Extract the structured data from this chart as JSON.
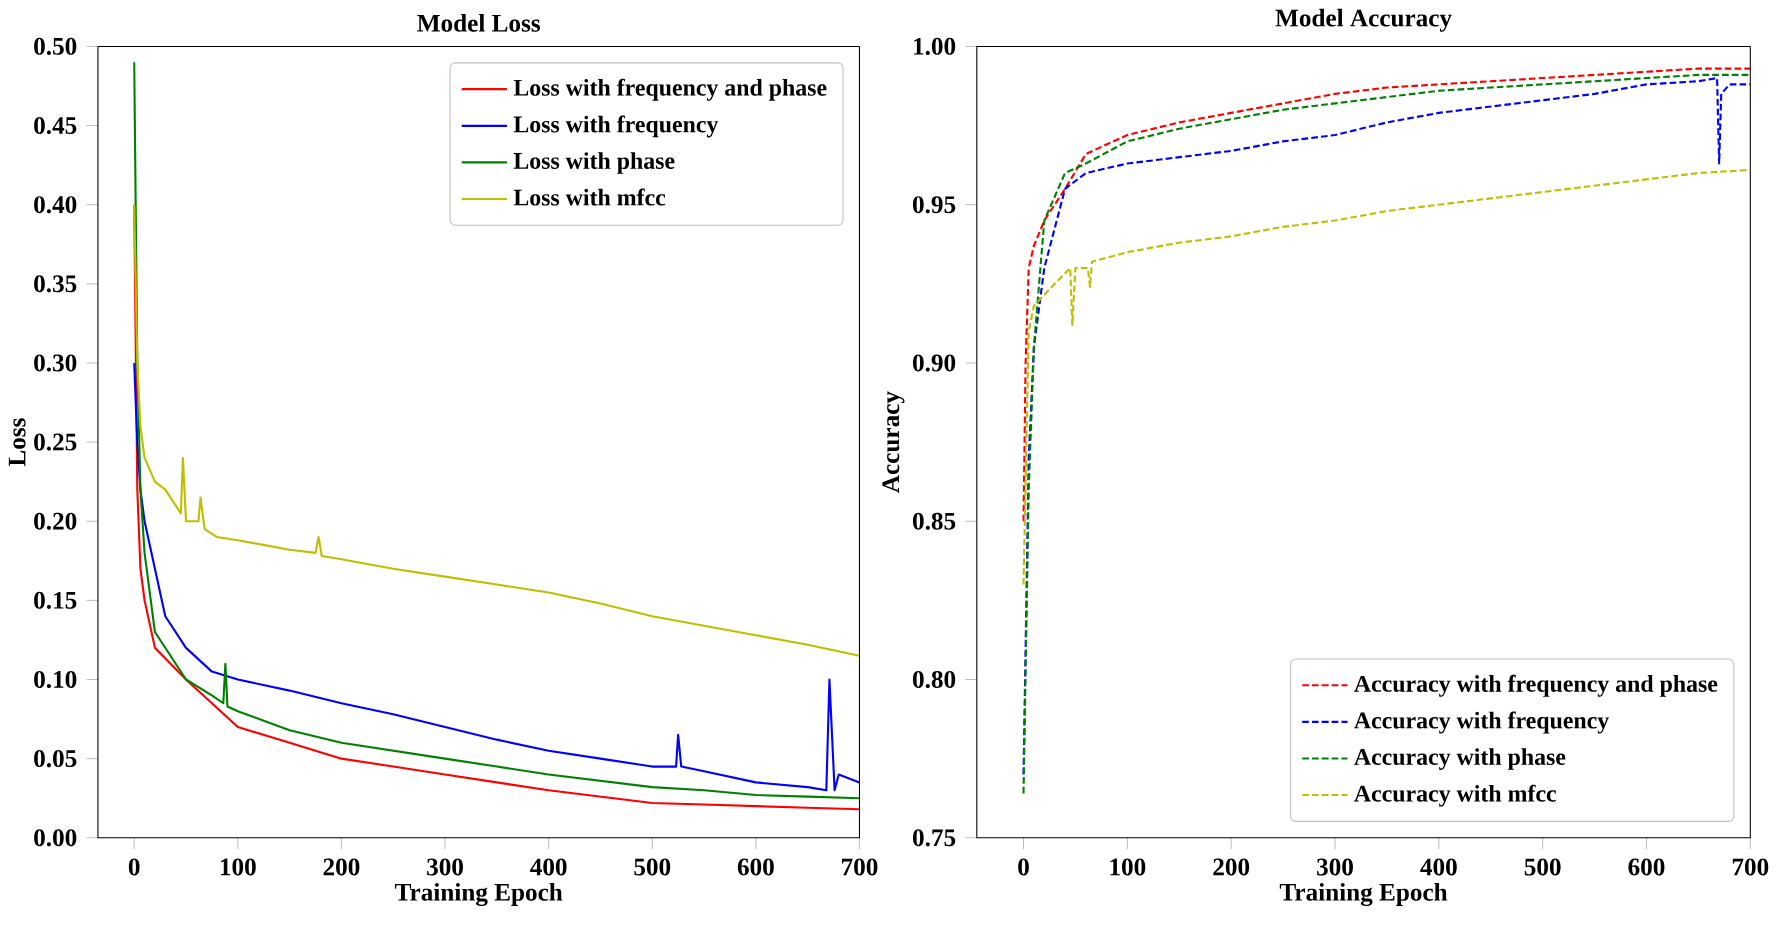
{
  "chart_data": [
    {
      "type": "line",
      "title": "Model Loss",
      "xlabel": "Training Epoch",
      "ylabel": "Loss",
      "legend": "top right",
      "line_style": "solid",
      "marker": "none",
      "grid": false,
      "xlim": [
        -35,
        700
      ],
      "ylim": [
        0,
        0.5
      ],
      "xticks": [
        0,
        100,
        200,
        300,
        400,
        500,
        600,
        700
      ],
      "yticks": [
        {
          "value": 0,
          "label": "0.00"
        },
        {
          "value": 0.05,
          "label": "0.05"
        },
        {
          "value": 0.1,
          "label": "0.10"
        },
        {
          "value": 0.15,
          "label": "0.15"
        },
        {
          "value": 0.2,
          "label": "0.20"
        },
        {
          "value": 0.25,
          "label": "0.25"
        },
        {
          "value": 0.3,
          "label": "0.30"
        },
        {
          "value": 0.35,
          "label": "0.35"
        },
        {
          "value": 0.4,
          "label": "0.40"
        },
        {
          "value": 0.45,
          "label": "0.45"
        },
        {
          "value": 0.5,
          "label": "0.50"
        }
      ],
      "series": [
        {
          "name": "Loss with frequency and phase",
          "color": "#ff0000",
          "x": [
            0,
            3,
            6,
            10,
            20,
            35,
            50,
            75,
            100,
            150,
            200,
            250,
            300,
            350,
            400,
            450,
            500,
            550,
            600,
            650,
            700
          ],
          "values": [
            0.4,
            0.22,
            0.17,
            0.15,
            0.12,
            0.11,
            0.1,
            0.085,
            0.07,
            0.06,
            0.05,
            0.045,
            0.04,
            0.035,
            0.03,
            0.026,
            0.022,
            0.021,
            0.02,
            0.019,
            0.018
          ]
        },
        {
          "name": "Loss with frequency",
          "color": "#0000ff",
          "x": [
            0,
            3,
            6,
            10,
            20,
            30,
            50,
            75,
            100,
            150,
            200,
            250,
            300,
            350,
            400,
            450,
            500,
            523,
            525,
            528,
            550,
            600,
            650,
            668,
            671,
            676,
            680,
            700
          ],
          "values": [
            0.3,
            0.25,
            0.22,
            0.2,
            0.17,
            0.14,
            0.12,
            0.105,
            0.1,
            0.093,
            0.085,
            0.078,
            0.07,
            0.062,
            0.055,
            0.05,
            0.045,
            0.045,
            0.065,
            0.045,
            0.042,
            0.035,
            0.032,
            0.03,
            0.1,
            0.03,
            0.04,
            0.035
          ]
        },
        {
          "name": "Loss with phase",
          "color": "#008000",
          "x": [
            0,
            3,
            6,
            10,
            20,
            35,
            50,
            75,
            86,
            88,
            90,
            100,
            150,
            200,
            250,
            300,
            350,
            400,
            450,
            500,
            550,
            600,
            650,
            700
          ],
          "values": [
            0.49,
            0.3,
            0.22,
            0.18,
            0.13,
            0.115,
            0.1,
            0.09,
            0.085,
            0.11,
            0.083,
            0.08,
            0.068,
            0.06,
            0.055,
            0.05,
            0.045,
            0.04,
            0.036,
            0.032,
            0.03,
            0.027,
            0.026,
            0.025
          ]
        },
        {
          "name": "Loss with mfcc",
          "color": "#bfbf00",
          "x": [
            0,
            3,
            6,
            10,
            20,
            30,
            45,
            47,
            50,
            62,
            64,
            68,
            80,
            100,
            150,
            175,
            178,
            181,
            200,
            250,
            300,
            350,
            400,
            450,
            500,
            550,
            600,
            650,
            700
          ],
          "values": [
            0.4,
            0.3,
            0.26,
            0.24,
            0.225,
            0.22,
            0.205,
            0.24,
            0.2,
            0.2,
            0.215,
            0.195,
            0.19,
            0.188,
            0.182,
            0.18,
            0.19,
            0.178,
            0.176,
            0.17,
            0.165,
            0.16,
            0.155,
            0.148,
            0.14,
            0.134,
            0.128,
            0.122,
            0.115
          ]
        }
      ]
    },
    {
      "type": "line",
      "title": "Model Accuracy",
      "xlabel": "Training Epoch",
      "ylabel": "Accuracy",
      "legend": "bottom right",
      "line_style": "dashed",
      "marker": "none",
      "grid": false,
      "xlim": [
        -45,
        700
      ],
      "ylim": [
        0.75,
        1.0
      ],
      "xticks": [
        0,
        100,
        200,
        300,
        400,
        500,
        600,
        700
      ],
      "yticks": [
        {
          "value": 0.75,
          "label": "0.75"
        },
        {
          "value": 0.8,
          "label": "0.80"
        },
        {
          "value": 0.85,
          "label": "0.85"
        },
        {
          "value": 0.9,
          "label": "0.90"
        },
        {
          "value": 0.95,
          "label": "0.95"
        },
        {
          "value": 1.0,
          "label": "1.00"
        }
      ],
      "series": [
        {
          "name": "Accuracy with frequency and phase",
          "color": "#ff0000",
          "x": [
            0,
            2,
            5,
            10,
            20,
            40,
            60,
            100,
            150,
            200,
            250,
            300,
            350,
            400,
            450,
            500,
            550,
            600,
            650,
            700
          ],
          "values": [
            0.85,
            0.9,
            0.93,
            0.937,
            0.945,
            0.955,
            0.966,
            0.972,
            0.976,
            0.979,
            0.982,
            0.985,
            0.987,
            0.988,
            0.989,
            0.99,
            0.991,
            0.992,
            0.993,
            0.993
          ]
        },
        {
          "name": "Accuracy with frequency",
          "color": "#0000ff",
          "x": [
            0,
            5,
            10,
            20,
            40,
            60,
            100,
            150,
            200,
            250,
            300,
            350,
            400,
            450,
            500,
            550,
            600,
            650,
            668,
            670,
            672,
            680,
            700
          ],
          "values": [
            0.77,
            0.87,
            0.905,
            0.93,
            0.955,
            0.96,
            0.963,
            0.965,
            0.967,
            0.97,
            0.972,
            0.976,
            0.979,
            0.981,
            0.983,
            0.985,
            0.988,
            0.989,
            0.99,
            0.963,
            0.985,
            0.988,
            0.988
          ]
        },
        {
          "name": "Accuracy with phase",
          "color": "#008000",
          "x": [
            0,
            5,
            10,
            20,
            40,
            60,
            100,
            150,
            200,
            250,
            300,
            350,
            400,
            450,
            500,
            550,
            600,
            650,
            700
          ],
          "values": [
            0.764,
            0.86,
            0.905,
            0.945,
            0.96,
            0.963,
            0.97,
            0.974,
            0.977,
            0.98,
            0.982,
            0.984,
            0.986,
            0.987,
            0.988,
            0.989,
            0.99,
            0.991,
            0.991
          ]
        },
        {
          "name": "Accuracy with mfcc",
          "color": "#bfbf00",
          "x": [
            0,
            5,
            10,
            30,
            45,
            47,
            50,
            62,
            64,
            66,
            100,
            150,
            200,
            250,
            300,
            350,
            400,
            450,
            500,
            550,
            600,
            650,
            700
          ],
          "values": [
            0.83,
            0.91,
            0.918,
            0.925,
            0.93,
            0.912,
            0.93,
            0.93,
            0.924,
            0.932,
            0.935,
            0.938,
            0.94,
            0.943,
            0.945,
            0.948,
            0.95,
            0.952,
            0.954,
            0.956,
            0.958,
            0.96,
            0.961
          ]
        }
      ]
    }
  ]
}
